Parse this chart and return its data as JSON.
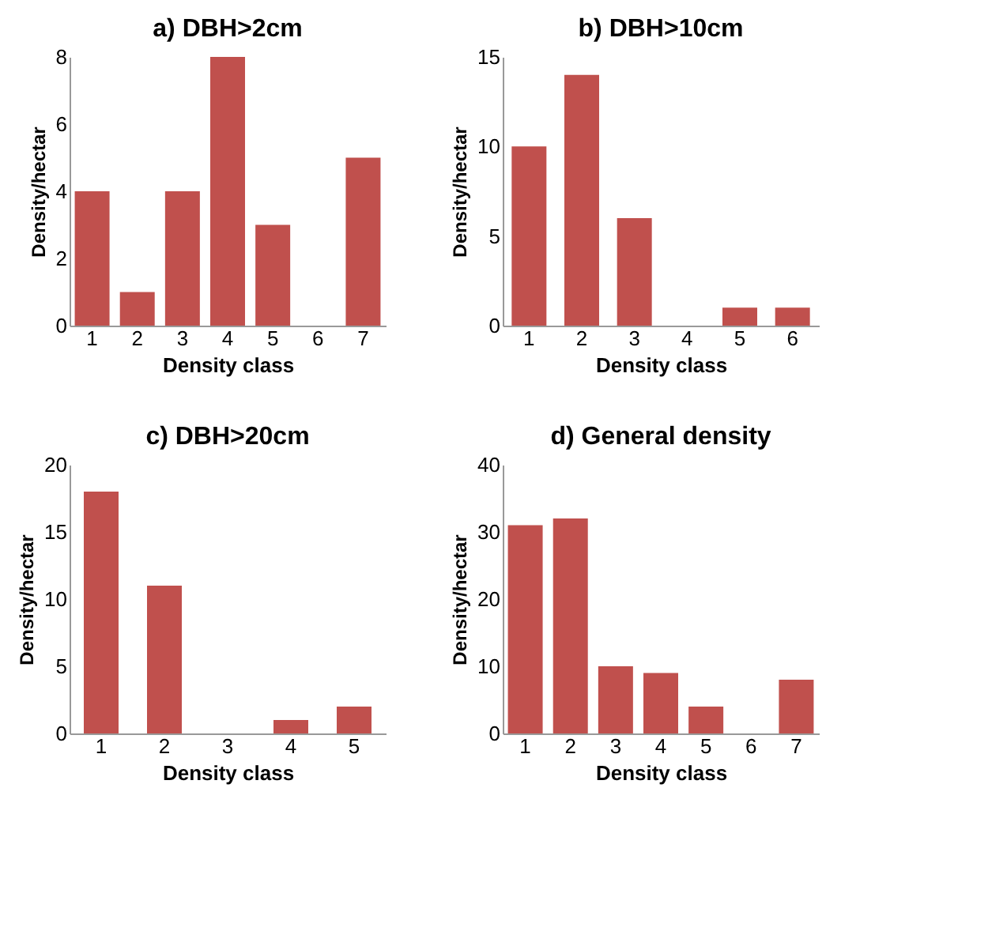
{
  "chart_data": [
    {
      "type": "bar",
      "title": "a) DBH>2cm",
      "xlabel": "Density class",
      "ylabel": "Density/hectar",
      "categories": [
        "1",
        "2",
        "3",
        "4",
        "5",
        "6",
        "7"
      ],
      "values": [
        4,
        1,
        4,
        8,
        3,
        0,
        5
      ],
      "color": "#c0504d",
      "ylim": [
        0,
        8
      ],
      "yticks": [
        0,
        2,
        4,
        6,
        8
      ],
      "grid": false
    },
    {
      "type": "bar",
      "title": "b) DBH>10cm",
      "xlabel": "Density class",
      "ylabel": "Density/hectar",
      "categories": [
        "1",
        "2",
        "3",
        "4",
        "5",
        "6"
      ],
      "values": [
        10,
        14,
        6,
        0,
        1,
        1
      ],
      "color": "#c0504d",
      "ylim": [
        0,
        15
      ],
      "yticks": [
        0,
        5,
        10,
        15
      ],
      "grid": false
    },
    {
      "type": "bar",
      "title": "c) DBH>20cm",
      "xlabel": "Density class",
      "ylabel": "Density/hectar",
      "categories": [
        "1",
        "2",
        "3",
        "4",
        "5"
      ],
      "values": [
        18,
        11,
        0,
        1,
        2
      ],
      "color": "#c0504d",
      "ylim": [
        0,
        20
      ],
      "yticks": [
        0,
        5,
        10,
        15,
        20
      ],
      "grid": false
    },
    {
      "type": "bar",
      "title": "d) General density",
      "xlabel": "Density class",
      "ylabel": "Density/hectar",
      "categories": [
        "1",
        "2",
        "3",
        "4",
        "5",
        "6",
        "7"
      ],
      "values": [
        31,
        32,
        10,
        9,
        4,
        0,
        8
      ],
      "color": "#c0504d",
      "ylim": [
        0,
        40
      ],
      "yticks": [
        0,
        10,
        20,
        30,
        40
      ],
      "grid": false
    }
  ]
}
